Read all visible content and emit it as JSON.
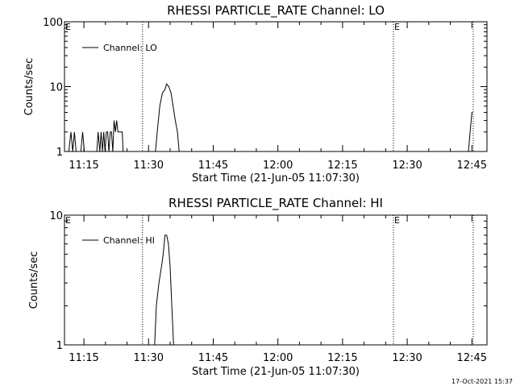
{
  "footer": {
    "timestamp": "17-Oct-2021 15:37"
  },
  "chart_data": [
    {
      "type": "line",
      "title": "RHESSI PARTICLE_RATE Channel: LO",
      "xlabel": "Start Time (21-Jun-05 11:07:30)",
      "ylabel": "Counts/sec",
      "y_scale": "log",
      "ylim": [
        1,
        100
      ],
      "y_ticks": [
        1,
        10,
        100
      ],
      "y_tick_labels": [
        "1",
        "10",
        "100"
      ],
      "xlim_minutes": [
        670.5,
        768.5
      ],
      "x_ticks_minutes": [
        675,
        690,
        705,
        720,
        735,
        750,
        765
      ],
      "x_tick_labels": [
        "11:15",
        "11:30",
        "11:45",
        "12:00",
        "12:15",
        "12:30",
        "12:45"
      ],
      "grid": false,
      "legend": {
        "position": "top-left",
        "entries": [
          "Channel: LO"
        ]
      },
      "vertical_markers_minutes": [
        688.6,
        746.8,
        765.3
      ],
      "marker_labels": [
        {
          "text": "E",
          "minute": 670.5
        },
        {
          "text": "E",
          "minute": 746.8
        }
      ],
      "series": [
        {
          "name": "Channel: LO",
          "segments": [
            [
              [
                671.5,
                1
              ],
              [
                672.0,
                2
              ],
              [
                672.4,
                1
              ],
              [
                672.8,
                2
              ],
              [
                673.2,
                1
              ]
            ],
            [
              [
                674.3,
                1
              ],
              [
                674.7,
                2
              ],
              [
                675.1,
                1
              ]
            ],
            [
              [
                678.0,
                1
              ],
              [
                678.3,
                2
              ],
              [
                678.7,
                1
              ],
              [
                679.0,
                2
              ],
              [
                679.3,
                1
              ],
              [
                679.6,
                2
              ],
              [
                679.9,
                1
              ],
              [
                680.2,
                2
              ],
              [
                680.5,
                2
              ],
              [
                680.8,
                1
              ],
              [
                681.1,
                2
              ],
              [
                681.4,
                2
              ],
              [
                681.7,
                1
              ],
              [
                682.0,
                3
              ],
              [
                682.3,
                2
              ],
              [
                682.6,
                3
              ],
              [
                682.9,
                2
              ],
              [
                683.2,
                2
              ],
              [
                683.5,
                2
              ],
              [
                683.9,
                2
              ],
              [
                684.1,
                1
              ]
            ],
            [
              [
                691.6,
                1
              ],
              [
                692.0,
                2
              ],
              [
                692.6,
                5
              ],
              [
                693.2,
                8
              ],
              [
                693.8,
                9
              ],
              [
                694.2,
                11
              ],
              [
                694.7,
                10
              ],
              [
                695.2,
                8
              ],
              [
                695.7,
                5
              ],
              [
                696.2,
                3
              ],
              [
                696.7,
                2
              ],
              [
                697.1,
                1
              ]
            ],
            [
              [
                764.2,
                1
              ],
              [
                764.6,
                2
              ],
              [
                765.0,
                4
              ],
              [
                765.2,
                4
              ]
            ]
          ]
        }
      ]
    },
    {
      "type": "line",
      "title": "RHESSI PARTICLE_RATE Channel: HI",
      "xlabel": "Start Time (21-Jun-05 11:07:30)",
      "ylabel": "Counts/sec",
      "y_scale": "log",
      "ylim": [
        1,
        10
      ],
      "y_ticks": [
        1,
        10
      ],
      "y_tick_labels": [
        "1",
        "10"
      ],
      "xlim_minutes": [
        670.5,
        768.5
      ],
      "x_ticks_minutes": [
        675,
        690,
        705,
        720,
        735,
        750,
        765
      ],
      "x_tick_labels": [
        "11:15",
        "11:30",
        "11:45",
        "12:00",
        "12:15",
        "12:30",
        "12:45"
      ],
      "grid": false,
      "legend": {
        "position": "top-left",
        "entries": [
          "Channel: HI"
        ]
      },
      "vertical_markers_minutes": [
        688.6,
        746.8,
        765.3
      ],
      "marker_labels": [
        {
          "text": "E",
          "minute": 670.5
        },
        {
          "text": "E",
          "minute": 746.8
        }
      ],
      "series": [
        {
          "name": "Channel: HI",
          "segments": [
            [
              [
                691.4,
                1
              ],
              [
                691.8,
                2
              ],
              [
                692.4,
                3
              ],
              [
                693.0,
                4
              ],
              [
                693.4,
                5
              ],
              [
                693.8,
                7
              ],
              [
                694.2,
                7
              ],
              [
                694.6,
                6
              ],
              [
                695.0,
                4
              ],
              [
                695.4,
                2
              ],
              [
                695.8,
                1
              ]
            ]
          ]
        }
      ]
    }
  ]
}
